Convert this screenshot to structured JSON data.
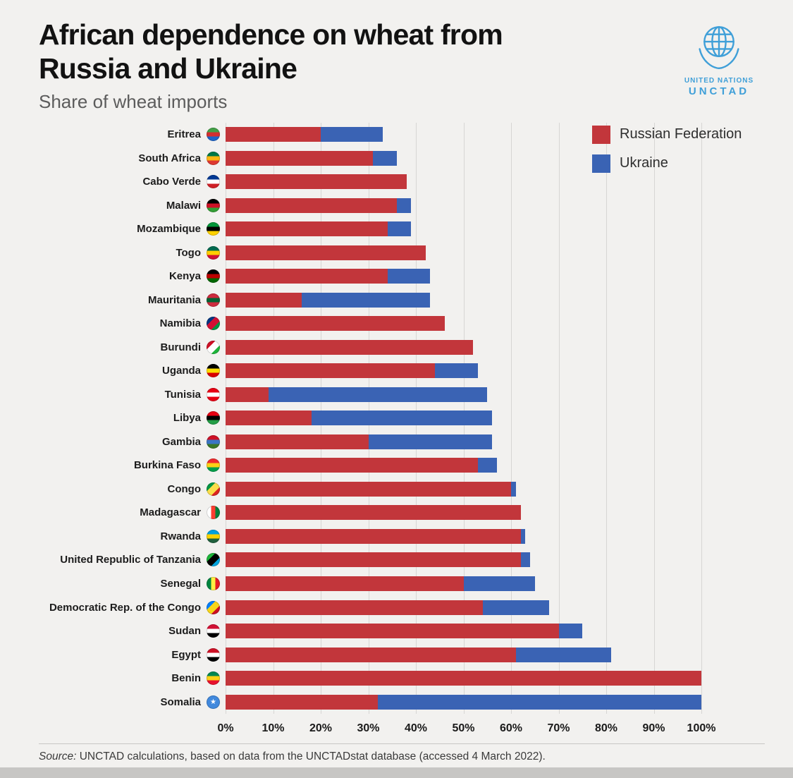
{
  "header": {
    "title_line1": "African dependence on wheat from",
    "title_line2": "Russia and Ukraine",
    "subtitle": "Share of wheat imports",
    "logo": {
      "org": "UNITED NATIONS",
      "sub": "UNCTAD",
      "color": "#3f9fd8"
    }
  },
  "chart_data": {
    "type": "bar",
    "orientation": "horizontal",
    "stacked": true,
    "title": "African dependence on wheat from Russia and Ukraine",
    "subtitle": "Share of wheat imports",
    "categories": [
      "Eritrea",
      "South Africa",
      "Cabo Verde",
      "Malawi",
      "Mozambique",
      "Togo",
      "Kenya",
      "Mauritania",
      "Namibia",
      "Burundi",
      "Uganda",
      "Tunisia",
      "Libya",
      "Gambia",
      "Burkina Faso",
      "Congo",
      "Madagascar",
      "Rwanda",
      "United Republic of Tanzania",
      "Senegal",
      "Democratic Rep. of the Congo",
      "Sudan",
      "Egypt",
      "Benin",
      "Somalia"
    ],
    "series": [
      {
        "name": "Russian Federation",
        "color": "#c2363b",
        "values": [
          20,
          31,
          38,
          36,
          34,
          42,
          34,
          16,
          46,
          52,
          44,
          9,
          18,
          30,
          53,
          60,
          62,
          62,
          62,
          50,
          54,
          70,
          61,
          100,
          32
        ]
      },
      {
        "name": "Ukraine",
        "color": "#3a63b4",
        "values": [
          13,
          5,
          0,
          3,
          5,
          0,
          9,
          27,
          0,
          0,
          9,
          46,
          38,
          26,
          4,
          1,
          0,
          1,
          2,
          15,
          14,
          5,
          20,
          0,
          68
        ]
      }
    ],
    "x_ticks": [
      "0%",
      "10%",
      "20%",
      "30%",
      "40%",
      "50%",
      "60%",
      "70%",
      "80%",
      "90%",
      "100%"
    ],
    "xlim": [
      0,
      100
    ],
    "grid": true,
    "legend_position": "top-right"
  },
  "flags": [
    {
      "colors": [
        "#43a047",
        "#d32f2f",
        "#1e64c8"
      ]
    },
    {
      "colors": [
        "#007847",
        "#ffb611",
        "#de3831"
      ]
    },
    {
      "colors": [
        "#003893",
        "#ffffff",
        "#cf2027"
      ]
    },
    {
      "colors": [
        "#000000",
        "#ce1126",
        "#339e35"
      ]
    },
    {
      "colors": [
        "#009639",
        "#000000",
        "#ffd100"
      ]
    },
    {
      "colors": [
        "#006a4e",
        "#ffce00",
        "#d21034"
      ]
    },
    {
      "colors": [
        "#000000",
        "#bb0000",
        "#006600"
      ]
    },
    {
      "colors": [
        "#cd2a3e",
        "#006233",
        "#cd2a3e"
      ]
    },
    {
      "colors": [
        "#003580",
        "#d21034",
        "#009543"
      ],
      "dir": "135deg"
    },
    {
      "colors": [
        "#ce1126",
        "#ffffff",
        "#1eb53a"
      ],
      "dir": "135deg"
    },
    {
      "colors": [
        "#000000",
        "#fcdc04",
        "#d90000"
      ]
    },
    {
      "colors": [
        "#e70013",
        "#ffffff",
        "#e70013"
      ]
    },
    {
      "colors": [
        "#e70013",
        "#000000",
        "#239e46"
      ]
    },
    {
      "colors": [
        "#ce1126",
        "#3a75c4",
        "#3a7728"
      ]
    },
    {
      "colors": [
        "#ef2b2d",
        "#fcd116",
        "#009e49"
      ]
    },
    {
      "colors": [
        "#009543",
        "#fbde4a",
        "#dc241f"
      ],
      "dir": "135deg"
    },
    {
      "colors": [
        "#ffffff",
        "#fc3d32",
        "#007e3a"
      ],
      "dir": "to right"
    },
    {
      "colors": [
        "#00a1de",
        "#fad201",
        "#20603d"
      ]
    },
    {
      "colors": [
        "#1eb53a",
        "#000000",
        "#00a3dd"
      ],
      "dir": "135deg"
    },
    {
      "colors": [
        "#00853f",
        "#fdef42",
        "#e31b23"
      ],
      "dir": "to right"
    },
    {
      "colors": [
        "#007fff",
        "#f7d618",
        "#ce1021"
      ],
      "dir": "135deg"
    },
    {
      "colors": [
        "#d21034",
        "#ffffff",
        "#000000"
      ]
    },
    {
      "colors": [
        "#ce1126",
        "#ffffff",
        "#000000"
      ]
    },
    {
      "colors": [
        "#008751",
        "#fcd116",
        "#e8112d"
      ]
    },
    {
      "colors": [
        "#4189dd"
      ],
      "symbol": "★"
    }
  ],
  "footer": {
    "source_prefix": "Source:",
    "source_text": " UNCTAD calculations, based on data from the UNCTADstat database (accessed 4 March 2022)."
  }
}
